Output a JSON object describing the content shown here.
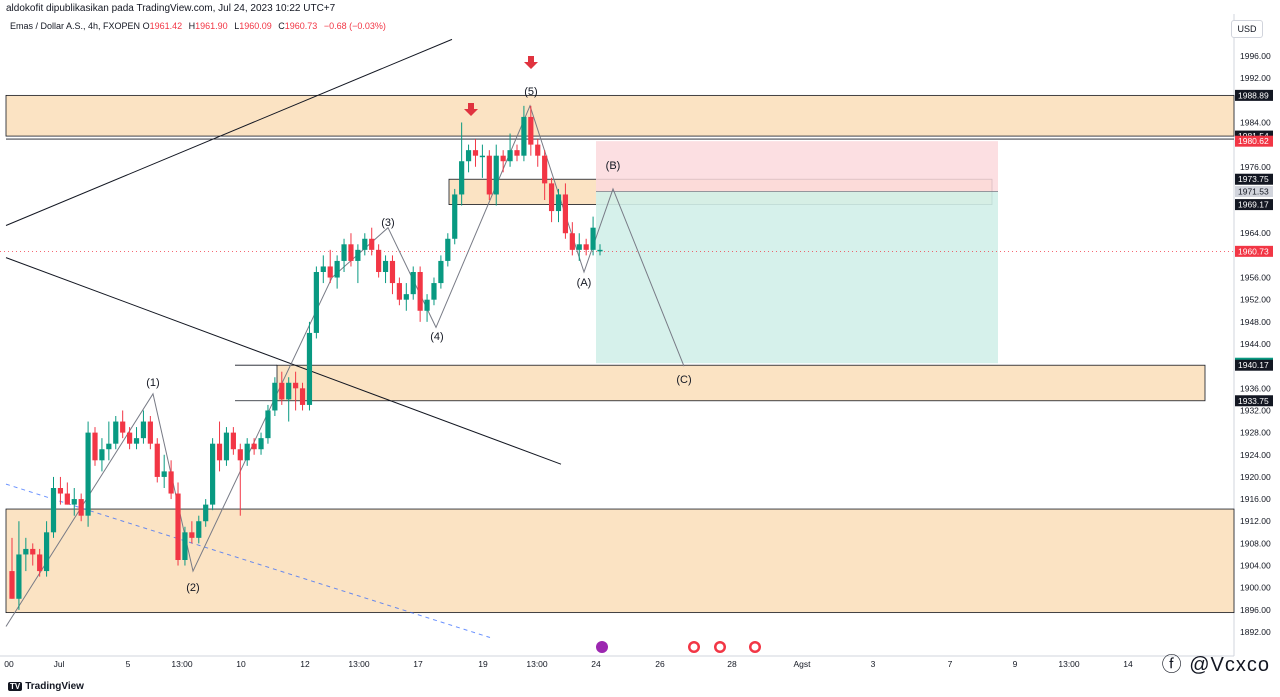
{
  "header": {
    "publisher_line": "aldokofit dipublikasikan pada TradingView.com, Jul 24, 2023 10:22 UTC+7",
    "symbol_line": "Emas / Dollar A.S., 4h, FXOPEN",
    "ohlc": [
      {
        "label": "O",
        "value": "1961.42"
      },
      {
        "label": "H",
        "value": "1961.90"
      },
      {
        "label": "L",
        "value": "1960.09"
      },
      {
        "label": "C",
        "value": "1960.73"
      }
    ],
    "change": "−0.68 (−0.03%)"
  },
  "currency_button": "USD",
  "footer": {
    "brand": "TradingView",
    "watermark": "ⓕ @Vcxco"
  },
  "colors": {
    "up": "#089981",
    "down": "#f23645",
    "zone": "#fbe3c3",
    "tp": "#d2efe9",
    "sl": "#fbd9dd"
  },
  "chart_data": {
    "type": "candlestick",
    "title": "",
    "yrange": [
      1890,
      2000
    ],
    "y_ticks": [
      "1996.00",
      "1992.00",
      "1984.00",
      "1976.00",
      "1964.00",
      "1956.00",
      "1952.00",
      "1948.00",
      "1944.00",
      "1936.00",
      "1932.00",
      "1928.00",
      "1924.00",
      "1920.00",
      "1916.00",
      "1912.00",
      "1908.00",
      "1904.00",
      "1900.00",
      "1896.00",
      "1892.00"
    ],
    "x_ticks": [
      "00",
      "Jul",
      "5",
      "13:00",
      "10",
      "12",
      "13:00",
      "17",
      "19",
      "13:00",
      "24",
      "26",
      "28",
      "Agst",
      "3",
      "7",
      "9",
      "13:00",
      "14"
    ],
    "price_labels": [
      {
        "value": "1988.89",
        "style": "dark"
      },
      {
        "value": "1981.54",
        "style": "dark"
      },
      {
        "value": "1980.62",
        "style": "red"
      },
      {
        "value": "1973.75",
        "style": "dark"
      },
      {
        "value": "1971.53",
        "style": "gray"
      },
      {
        "value": "1969.17",
        "style": "dark"
      },
      {
        "value": "1960.73",
        "style": "red"
      },
      {
        "value": "1940.53",
        "style": "green"
      },
      {
        "value": "1940.17",
        "style": "dark"
      },
      {
        "value": "1933.75",
        "style": "dark"
      }
    ],
    "wave_labels": [
      "(1)",
      "(2)",
      "(3)",
      "(4)",
      "(5)",
      "(A)",
      "(B)",
      "(C)"
    ],
    "zones": [
      {
        "from": 1981.54,
        "to": 1988.89
      },
      {
        "from": 1969.17,
        "to": 1973.75
      },
      {
        "from": 1933.75,
        "to": 1940.17
      },
      {
        "from": 1895.5,
        "to": 1914.2
      }
    ],
    "position": {
      "entry": 1971.53,
      "stop": 1980.62,
      "target": 1940.53
    },
    "current_price": 1960.73,
    "candles": [
      [
        1903,
        1909,
        1898,
        1898
      ],
      [
        1898,
        1912,
        1896,
        1906
      ],
      [
        1906,
        1909,
        1903,
        1907
      ],
      [
        1907,
        1908,
        1904,
        1906
      ],
      [
        1906,
        1907,
        1902,
        1903
      ],
      [
        1903,
        1912,
        1902,
        1910
      ],
      [
        1910,
        1920,
        1909,
        1918
      ],
      [
        1918,
        1920,
        1915,
        1917
      ],
      [
        1917,
        1919,
        1915,
        1915
      ],
      [
        1915,
        1918,
        1913,
        1916
      ],
      [
        1916,
        1917,
        1912,
        1913
      ],
      [
        1913,
        1930,
        1911,
        1928
      ],
      [
        1928,
        1929,
        1922,
        1923
      ],
      [
        1923,
        1927,
        1921,
        1925
      ],
      [
        1925,
        1930,
        1923,
        1926
      ],
      [
        1926,
        1931,
        1925,
        1930
      ],
      [
        1930,
        1932,
        1927,
        1928
      ],
      [
        1928,
        1929,
        1925,
        1926
      ],
      [
        1926,
        1929,
        1925,
        1927
      ],
      [
        1927,
        1932,
        1926,
        1930
      ],
      [
        1930,
        1931,
        1925,
        1926
      ],
      [
        1926,
        1927,
        1919,
        1920
      ],
      [
        1920,
        1924,
        1918,
        1921
      ],
      [
        1921,
        1923,
        1916,
        1917
      ],
      [
        1917,
        1919,
        1904,
        1905
      ],
      [
        1905,
        1911,
        1904,
        1910
      ],
      [
        1910,
        1912,
        1908,
        1909
      ],
      [
        1909,
        1913,
        1908,
        1912
      ],
      [
        1912,
        1916,
        1911,
        1915
      ],
      [
        1915,
        1927,
        1914,
        1926
      ],
      [
        1926,
        1930,
        1921,
        1923
      ],
      [
        1923,
        1929,
        1922,
        1928
      ],
      [
        1928,
        1929,
        1924,
        1925
      ],
      [
        1925,
        1926,
        1913,
        1923
      ],
      [
        1923,
        1927,
        1922,
        1926
      ],
      [
        1926,
        1927,
        1924,
        1925
      ],
      [
        1925,
        1928,
        1924,
        1927
      ],
      [
        1927,
        1933,
        1926,
        1932
      ],
      [
        1932,
        1938,
        1931,
        1937
      ],
      [
        1937,
        1939,
        1933,
        1934
      ],
      [
        1934,
        1938,
        1930,
        1937
      ],
      [
        1937,
        1939,
        1932,
        1936
      ],
      [
        1936,
        1937,
        1932,
        1933
      ],
      [
        1933,
        1948,
        1932,
        1946
      ],
      [
        1946,
        1958,
        1945,
        1957
      ],
      [
        1957,
        1960,
        1955,
        1958
      ],
      [
        1958,
        1961,
        1955,
        1956
      ],
      [
        1956,
        1960,
        1954,
        1959
      ],
      [
        1959,
        1963,
        1957,
        1962
      ],
      [
        1962,
        1964,
        1958,
        1959
      ],
      [
        1959,
        1962,
        1955,
        1961
      ],
      [
        1961,
        1964,
        1960,
        1963
      ],
      [
        1963,
        1965,
        1960,
        1961
      ],
      [
        1961,
        1962,
        1956,
        1957
      ],
      [
        1957,
        1960,
        1955,
        1959
      ],
      [
        1959,
        1960,
        1953,
        1955
      ],
      [
        1955,
        1956,
        1951,
        1952
      ],
      [
        1952,
        1955,
        1950,
        1953
      ],
      [
        1953,
        1958,
        1952,
        1957
      ],
      [
        1957,
        1958,
        1948,
        1950
      ],
      [
        1950,
        1953,
        1948,
        1952
      ],
      [
        1952,
        1956,
        1951,
        1955
      ],
      [
        1955,
        1960,
        1954,
        1959
      ],
      [
        1959,
        1964,
        1958,
        1963
      ],
      [
        1963,
        1972,
        1962,
        1971
      ],
      [
        1971,
        1984,
        1969,
        1977
      ],
      [
        1977,
        1980,
        1975,
        1979
      ],
      [
        1979,
        1981,
        1976,
        1978
      ],
      [
        1978,
        1980,
        1974,
        1978
      ],
      [
        1978,
        1979,
        1970,
        1971
      ],
      [
        1971,
        1980,
        1969,
        1978
      ],
      [
        1978,
        1979,
        1975,
        1977
      ],
      [
        1977,
        1982,
        1976,
        1979
      ],
      [
        1979,
        1980,
        1977,
        1978
      ],
      [
        1978,
        1987,
        1977,
        1985
      ],
      [
        1985,
        1987,
        1978,
        1980
      ],
      [
        1980,
        1981,
        1976,
        1978
      ],
      [
        1978,
        1979,
        1970,
        1973
      ],
      [
        1973,
        1974,
        1966,
        1968
      ],
      [
        1968,
        1972,
        1966,
        1971
      ],
      [
        1971,
        1973,
        1963,
        1964
      ],
      [
        1964,
        1966,
        1960,
        1961
      ],
      [
        1961,
        1964,
        1959,
        1962
      ],
      [
        1962,
        1963,
        1960,
        1961
      ],
      [
        1961,
        1967,
        1960,
        1965
      ],
      [
        1961,
        1962,
        1960,
        1961
      ]
    ]
  }
}
